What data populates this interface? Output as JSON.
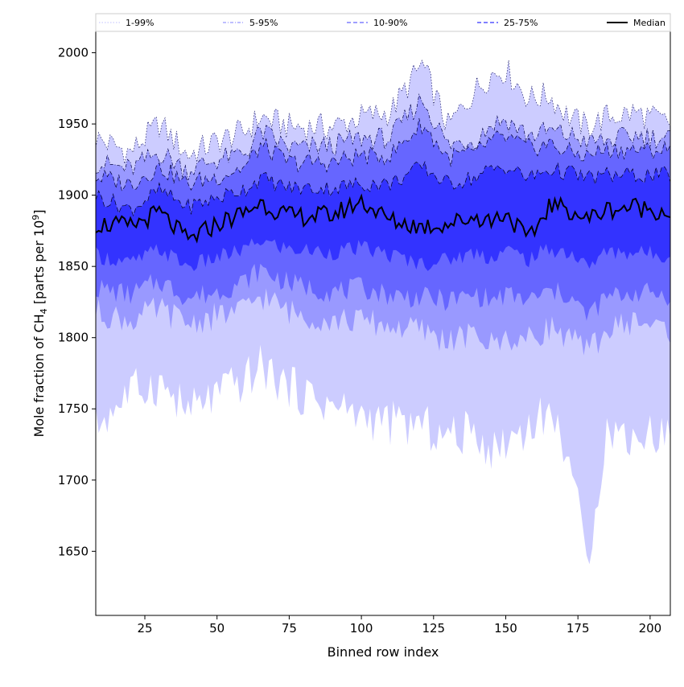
{
  "chart_data": {
    "type": "area",
    "title": "",
    "xlabel": "Binned row index",
    "ylabel_main": "Mole fraction of CH",
    "ylabel_sub": "4",
    "ylabel_rest": " [parts per 10",
    "ylabel_sup": "9",
    "ylabel_end": "]",
    "xlim": [
      8,
      207
    ],
    "ylim": [
      1605,
      2015
    ],
    "x_ticks": [
      25,
      50,
      75,
      100,
      125,
      150,
      175,
      200
    ],
    "y_ticks": [
      1650,
      1700,
      1750,
      1800,
      1850,
      1900,
      1950,
      2000
    ],
    "grid": false,
    "legend_position": "top",
    "legend": [
      {
        "label": "1-99%",
        "color": "#ccccff",
        "style": "dotted"
      },
      {
        "label": "5-95%",
        "color": "#9999ff",
        "style": "dashdot"
      },
      {
        "label": "10-90%",
        "color": "#6666ff",
        "style": "dashed"
      },
      {
        "label": "25-75%",
        "color": "#3333ff",
        "style": "dashed"
      },
      {
        "label": "Median",
        "color": "#000000",
        "style": "solid"
      }
    ],
    "x_range": [
      8,
      207
    ],
    "control_points": {
      "x": [
        8,
        20,
        30,
        40,
        50,
        60,
        65,
        75,
        90,
        100,
        110,
        121,
        130,
        140,
        145,
        150,
        158,
        165,
        172,
        178,
        185,
        195,
        207
      ],
      "p99": [
        1940,
        1930,
        1950,
        1928,
        1938,
        1945,
        1955,
        1948,
        1948,
        1955,
        1958,
        1992,
        1948,
        1975,
        1985,
        1988,
        1968,
        1970,
        1955,
        1948,
        1955,
        1958,
        1950
      ],
      "p95": [
        1923,
        1918,
        1930,
        1918,
        1925,
        1930,
        1945,
        1933,
        1935,
        1940,
        1940,
        1968,
        1935,
        1940,
        1950,
        1953,
        1942,
        1945,
        1942,
        1938,
        1938,
        1942,
        1940
      ],
      "p90": [
        1913,
        1908,
        1920,
        1908,
        1913,
        1920,
        1935,
        1923,
        1923,
        1928,
        1928,
        1950,
        1926,
        1932,
        1938,
        1940,
        1933,
        1936,
        1930,
        1928,
        1932,
        1932,
        1932
      ],
      "p75": [
        1900,
        1890,
        1903,
        1892,
        1898,
        1905,
        1912,
        1905,
        1905,
        1908,
        1908,
        1920,
        1908,
        1913,
        1918,
        1920,
        1912,
        1918,
        1916,
        1912,
        1914,
        1914,
        1914
      ],
      "med": [
        1880,
        1878,
        1888,
        1868,
        1880,
        1888,
        1895,
        1885,
        1886,
        1896,
        1882,
        1878,
        1880,
        1885,
        1882,
        1888,
        1868,
        1893,
        1890,
        1883,
        1890,
        1892,
        1888
      ],
      "p25": [
        1858,
        1852,
        1862,
        1850,
        1856,
        1862,
        1868,
        1862,
        1860,
        1863,
        1858,
        1852,
        1855,
        1860,
        1856,
        1862,
        1855,
        1862,
        1860,
        1850,
        1860,
        1860,
        1858
      ],
      "p10": [
        1835,
        1830,
        1840,
        1828,
        1832,
        1840,
        1848,
        1838,
        1832,
        1835,
        1830,
        1828,
        1826,
        1830,
        1826,
        1830,
        1826,
        1832,
        1830,
        1815,
        1828,
        1832,
        1830
      ],
      "p5": [
        1818,
        1812,
        1820,
        1810,
        1815,
        1820,
        1830,
        1818,
        1812,
        1812,
        1808,
        1805,
        1798,
        1802,
        1795,
        1800,
        1798,
        1808,
        1800,
        1790,
        1805,
        1812,
        1805
      ],
      "p1": [
        1738,
        1762,
        1768,
        1748,
        1760,
        1770,
        1780,
        1765,
        1752,
        1745,
        1740,
        1738,
        1730,
        1735,
        1720,
        1728,
        1738,
        1748,
        1718,
        1640,
        1735,
        1730,
        1735
      ]
    }
  }
}
